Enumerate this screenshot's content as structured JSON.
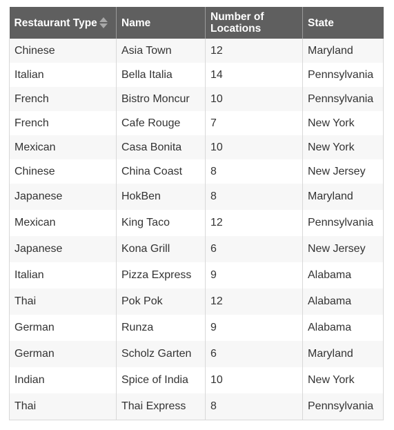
{
  "table": {
    "headers": [
      {
        "label": "Restaurant Type",
        "sortable": true
      },
      {
        "label": "Name",
        "sortable": false
      },
      {
        "label": "Number of Locations",
        "sortable": false
      },
      {
        "label": "State",
        "sortable": false
      }
    ],
    "header_bg": "#5f5f5f",
    "rows": [
      {
        "type": "Chinese",
        "name": "Asia Town",
        "locations": "12",
        "state": "Maryland"
      },
      {
        "type": "Italian",
        "name": "Bella Italia",
        "locations": "14",
        "state": "Pennsylvania"
      },
      {
        "type": "French",
        "name": "Bistro Moncur",
        "locations": "10",
        "state": "Pennsylvania"
      },
      {
        "type": "French",
        "name": "Cafe Rouge",
        "locations": "7",
        "state": "New York"
      },
      {
        "type": "Mexican",
        "name": "Casa Bonita",
        "locations": "10",
        "state": "New York"
      },
      {
        "type": "Chinese",
        "name": "China Coast",
        "locations": "8",
        "state": "New Jersey"
      },
      {
        "type": "Japanese",
        "name": "HokBen",
        "locations": "8",
        "state": "Maryland"
      },
      {
        "type": "Mexican",
        "name": "King Taco",
        "locations": "12",
        "state": "Pennsylvania"
      },
      {
        "type": "Japanese",
        "name": "Kona Grill",
        "locations": "6",
        "state": "New Jersey"
      },
      {
        "type": "Italian",
        "name": "Pizza Express",
        "locations": "9",
        "state": "Alabama"
      },
      {
        "type": "Thai",
        "name": "Pok Pok",
        "locations": "12",
        "state": "Alabama"
      },
      {
        "type": "German",
        "name": "Runza",
        "locations": "9",
        "state": "Alabama"
      },
      {
        "type": "German",
        "name": "Scholz Garten",
        "locations": "6",
        "state": "Maryland"
      },
      {
        "type": "Indian",
        "name": "Spice of India",
        "locations": "10",
        "state": "New York"
      },
      {
        "type": "Thai",
        "name": "Thai Express",
        "locations": "8",
        "state": "Pennsylvania"
      }
    ]
  }
}
